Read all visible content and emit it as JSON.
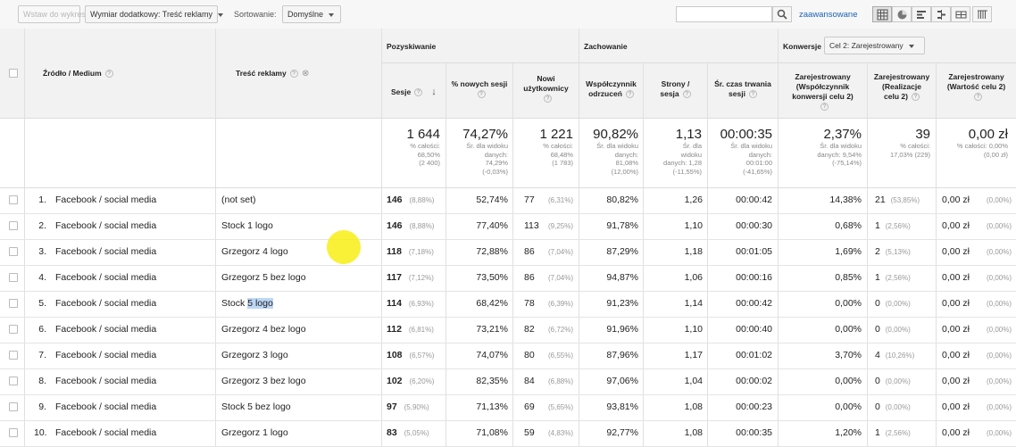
{
  "toolbar": {
    "chart_button": "Wstaw do wykresu",
    "secondary_dimension": "Wymiar dodatkowy: Treść reklamy",
    "sort_label": "Sortowanie:",
    "sort_value": "Domyślne",
    "search_value": "",
    "advanced_link": "zaawansowane"
  },
  "header": {
    "source_medium": "Źródło / Medium",
    "ad_content": "Treść reklamy",
    "group_acquisition": "Pozyskiwanie",
    "group_behavior": "Zachowanie",
    "group_conversions": "Konwersje",
    "goal_select": "Cel 2: Zarejestrowany",
    "col_sessions": "Sesje",
    "col_new_sessions": "% nowych sesji",
    "col_new_users_1": "Nowi",
    "col_new_users_2": "użytkownicy",
    "col_bounce_1": "Współczynnik",
    "col_bounce_2": "odrzuceń",
    "col_pages_1": "Strony /",
    "col_pages_2": "sesja",
    "col_duration_1": "Śr. czas trwania",
    "col_duration_2": "sesji",
    "col_conv_rate_1": "Zarejestrowany",
    "col_conv_rate_2": "(Współczynnik",
    "col_conv_rate_3": "konwersji celu 2)",
    "col_completions_1": "Zarejestrowany",
    "col_completions_2": "(Realizacje",
    "col_completions_3": "celu 2)",
    "col_value_1": "Zarejestrowany",
    "col_value_2": "(Wartość celu 2)"
  },
  "totals": {
    "sessions": {
      "value": "1 644",
      "sub": [
        "% całości:",
        "68,50%",
        "(2 400)"
      ]
    },
    "new_sessions": {
      "value": "74,27%",
      "sub": [
        "Śr. dla widoku",
        "danych:",
        "74,29%",
        "(-0,03%)"
      ]
    },
    "new_users": {
      "value": "1 221",
      "sub": [
        "% całości:",
        "68,48%",
        "(1 783)"
      ]
    },
    "bounce": {
      "value": "90,82%",
      "sub": [
        "Śr. dla widoku",
        "danych:",
        "81,08%",
        "(12,00%)"
      ]
    },
    "pages": {
      "value": "1,13",
      "sub": [
        "Śr. dla",
        "widoku",
        "danych: 1,28",
        "(-11,55%)"
      ]
    },
    "duration": {
      "value": "00:00:35",
      "sub": [
        "Śr. dla widoku",
        "danych:",
        "00:01:00",
        "(-41,65%)"
      ]
    },
    "conv_rate": {
      "value": "2,37%",
      "sub": [
        "Śr. dla widoku",
        "danych: 9,54%",
        "(-75,14%)"
      ]
    },
    "completions": {
      "value": "39",
      "sub": [
        "% całości:",
        "17,03% (229)"
      ]
    },
    "goal_value": {
      "value": "0,00 zł",
      "sub": [
        "% całości: 0,00%",
        "(0,00 zł)"
      ]
    }
  },
  "rows": [
    {
      "idx": "1.",
      "source": "Facebook / social media",
      "content": "(not set)",
      "sessions": "146",
      "sessions_pct": "(8,88%)",
      "new_sessions": "52,74%",
      "new_users": "77",
      "new_users_pct": "(6,31%)",
      "bounce": "80,82%",
      "pages": "1,26",
      "duration": "00:00:42",
      "conv_rate": "14,38%",
      "completions": "21",
      "completions_pct": "(53,85%)",
      "value": "0,00 zł",
      "value_pct": "(0,00%)"
    },
    {
      "idx": "2.",
      "source": "Facebook / social media",
      "content": "Stock 1 logo",
      "sessions": "146",
      "sessions_pct": "(8,88%)",
      "new_sessions": "77,40%",
      "new_users": "113",
      "new_users_pct": "(9,25%)",
      "bounce": "91,78%",
      "pages": "1,10",
      "duration": "00:00:30",
      "conv_rate": "0,68%",
      "completions": "1",
      "completions_pct": "(2,56%)",
      "value": "0,00 zł",
      "value_pct": "(0,00%)"
    },
    {
      "idx": "3.",
      "source": "Facebook / social media",
      "content": "Grzegorz 4 logo",
      "sessions": "118",
      "sessions_pct": "(7,18%)",
      "new_sessions": "72,88%",
      "new_users": "86",
      "new_users_pct": "(7,04%)",
      "bounce": "87,29%",
      "pages": "1,18",
      "duration": "00:01:05",
      "conv_rate": "1,69%",
      "completions": "2",
      "completions_pct": "(5,13%)",
      "value": "0,00 zł",
      "value_pct": "(0,00%)"
    },
    {
      "idx": "4.",
      "source": "Facebook / social media",
      "content": "Grzegorz 5 bez logo",
      "sessions": "117",
      "sessions_pct": "(7,12%)",
      "new_sessions": "73,50%",
      "new_users": "86",
      "new_users_pct": "(7,04%)",
      "bounce": "94,87%",
      "pages": "1,06",
      "duration": "00:00:16",
      "conv_rate": "0,85%",
      "completions": "1",
      "completions_pct": "(2,56%)",
      "value": "0,00 zł",
      "value_pct": "(0,00%)"
    },
    {
      "idx": "5.",
      "source": "Facebook / social media",
      "content_a": "Stock ",
      "content_b": "5 logo",
      "sessions": "114",
      "sessions_pct": "(6,93%)",
      "new_sessions": "68,42%",
      "new_users": "78",
      "new_users_pct": "(6,39%)",
      "bounce": "91,23%",
      "pages": "1,14",
      "duration": "00:00:42",
      "conv_rate": "0,00%",
      "completions": "0",
      "completions_pct": "(0,00%)",
      "value": "0,00 zł",
      "value_pct": "(0,00%)"
    },
    {
      "idx": "6.",
      "source": "Facebook / social media",
      "content": "Grzegorz 4 bez logo",
      "sessions": "112",
      "sessions_pct": "(6,81%)",
      "new_sessions": "73,21%",
      "new_users": "82",
      "new_users_pct": "(6,72%)",
      "bounce": "91,96%",
      "pages": "1,10",
      "duration": "00:00:40",
      "conv_rate": "0,00%",
      "completions": "0",
      "completions_pct": "(0,00%)",
      "value": "0,00 zł",
      "value_pct": "(0,00%)"
    },
    {
      "idx": "7.",
      "source": "Facebook / social media",
      "content": "Grzegorz 3 logo",
      "sessions": "108",
      "sessions_pct": "(6,57%)",
      "new_sessions": "74,07%",
      "new_users": "80",
      "new_users_pct": "(6,55%)",
      "bounce": "87,96%",
      "pages": "1,17",
      "duration": "00:01:02",
      "conv_rate": "3,70%",
      "completions": "4",
      "completions_pct": "(10,26%)",
      "value": "0,00 zł",
      "value_pct": "(0,00%)"
    },
    {
      "idx": "8.",
      "source": "Facebook / social media",
      "content": "Grzegorz 3 bez logo",
      "sessions": "102",
      "sessions_pct": "(6,20%)",
      "new_sessions": "82,35%",
      "new_users": "84",
      "new_users_pct": "(6,88%)",
      "bounce": "97,06%",
      "pages": "1,04",
      "duration": "00:00:02",
      "conv_rate": "0,00%",
      "completions": "0",
      "completions_pct": "(0,00%)",
      "value": "0,00 zł",
      "value_pct": "(0,00%)"
    },
    {
      "idx": "9.",
      "source": "Facebook / social media",
      "content": "Stock 5 bez logo",
      "sessions": "97",
      "sessions_pct": "(5,90%)",
      "new_sessions": "71,13%",
      "new_users": "69",
      "new_users_pct": "(5,65%)",
      "bounce": "93,81%",
      "pages": "1,08",
      "duration": "00:00:23",
      "conv_rate": "0,00%",
      "completions": "0",
      "completions_pct": "(0,00%)",
      "value": "0,00 zł",
      "value_pct": "(0,00%)"
    },
    {
      "idx": "10.",
      "source": "Facebook / social media",
      "content": "Grzegorz 1 logo",
      "sessions": "83",
      "sessions_pct": "(5,05%)",
      "new_sessions": "71,08%",
      "new_users": "59",
      "new_users_pct": "(4,83%)",
      "bounce": "92,77%",
      "pages": "1,08",
      "duration": "00:00:35",
      "conv_rate": "1,20%",
      "completions": "1",
      "completions_pct": "(2,56%)",
      "value": "0,00 zł",
      "value_pct": "(0,00%)"
    }
  ],
  "icons": {
    "search": "search-icon",
    "table_view": "table-view-icon",
    "pie_view": "pie-view-icon",
    "bar_view": "bar-view-icon",
    "compare_view": "compare-view-icon",
    "pivot_view": "pivot-view-icon",
    "term_view": "term-cloud-icon",
    "sort_down": "arrow-down-icon"
  },
  "colors": {
    "link": "#1a62b5",
    "header_bg": "#f2f2f2",
    "highlight": "#bcd6f5",
    "cursor": "#f8ee14"
  }
}
